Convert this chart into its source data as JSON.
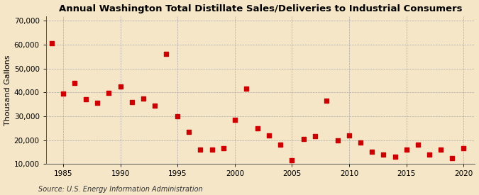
{
  "title": "Annual Washington Total Distillate Sales/Deliveries to Industrial Consumers",
  "ylabel": "Thousand Gallons",
  "source": "Source: U.S. Energy Information Administration",
  "background_color": "#f5e6c8",
  "plot_background_color": "#f5e6c8",
  "marker_color": "#cc0000",
  "marker_size": 14,
  "marker_style": "s",
  "years": [
    1984,
    1985,
    1986,
    1987,
    1988,
    1989,
    1990,
    1991,
    1992,
    1993,
    1994,
    1995,
    1996,
    1997,
    1998,
    1999,
    2000,
    2001,
    2002,
    2003,
    2004,
    2005,
    2006,
    2007,
    2008,
    2009,
    2010,
    2011,
    2012,
    2013,
    2014,
    2015,
    2016,
    2017,
    2018,
    2019,
    2020
  ],
  "values": [
    60500,
    39500,
    44000,
    37000,
    35500,
    39800,
    42500,
    35800,
    37500,
    34500,
    56000,
    30000,
    23500,
    16000,
    16000,
    16500,
    28500,
    41500,
    25000,
    22000,
    18000,
    11500,
    20500,
    21500,
    36500,
    20000,
    22000,
    19000,
    15000,
    14000,
    13000,
    16000,
    18000,
    14000,
    16000,
    12500,
    16500
  ],
  "xlim": [
    1983.5,
    2021
  ],
  "ylim": [
    10000,
    72000
  ],
  "yticks": [
    10000,
    20000,
    30000,
    40000,
    50000,
    60000,
    70000
  ],
  "ytick_labels": [
    "10,000",
    "20,000",
    "30,000",
    "40,000",
    "50,000",
    "60,000",
    "70,000"
  ],
  "xticks": [
    1985,
    1990,
    1995,
    2000,
    2005,
    2010,
    2015,
    2020
  ],
  "grid_color": "#aaaaaa",
  "grid_linestyle": "--",
  "title_fontsize": 9.5,
  "label_fontsize": 8,
  "tick_fontsize": 7.5,
  "source_fontsize": 7
}
